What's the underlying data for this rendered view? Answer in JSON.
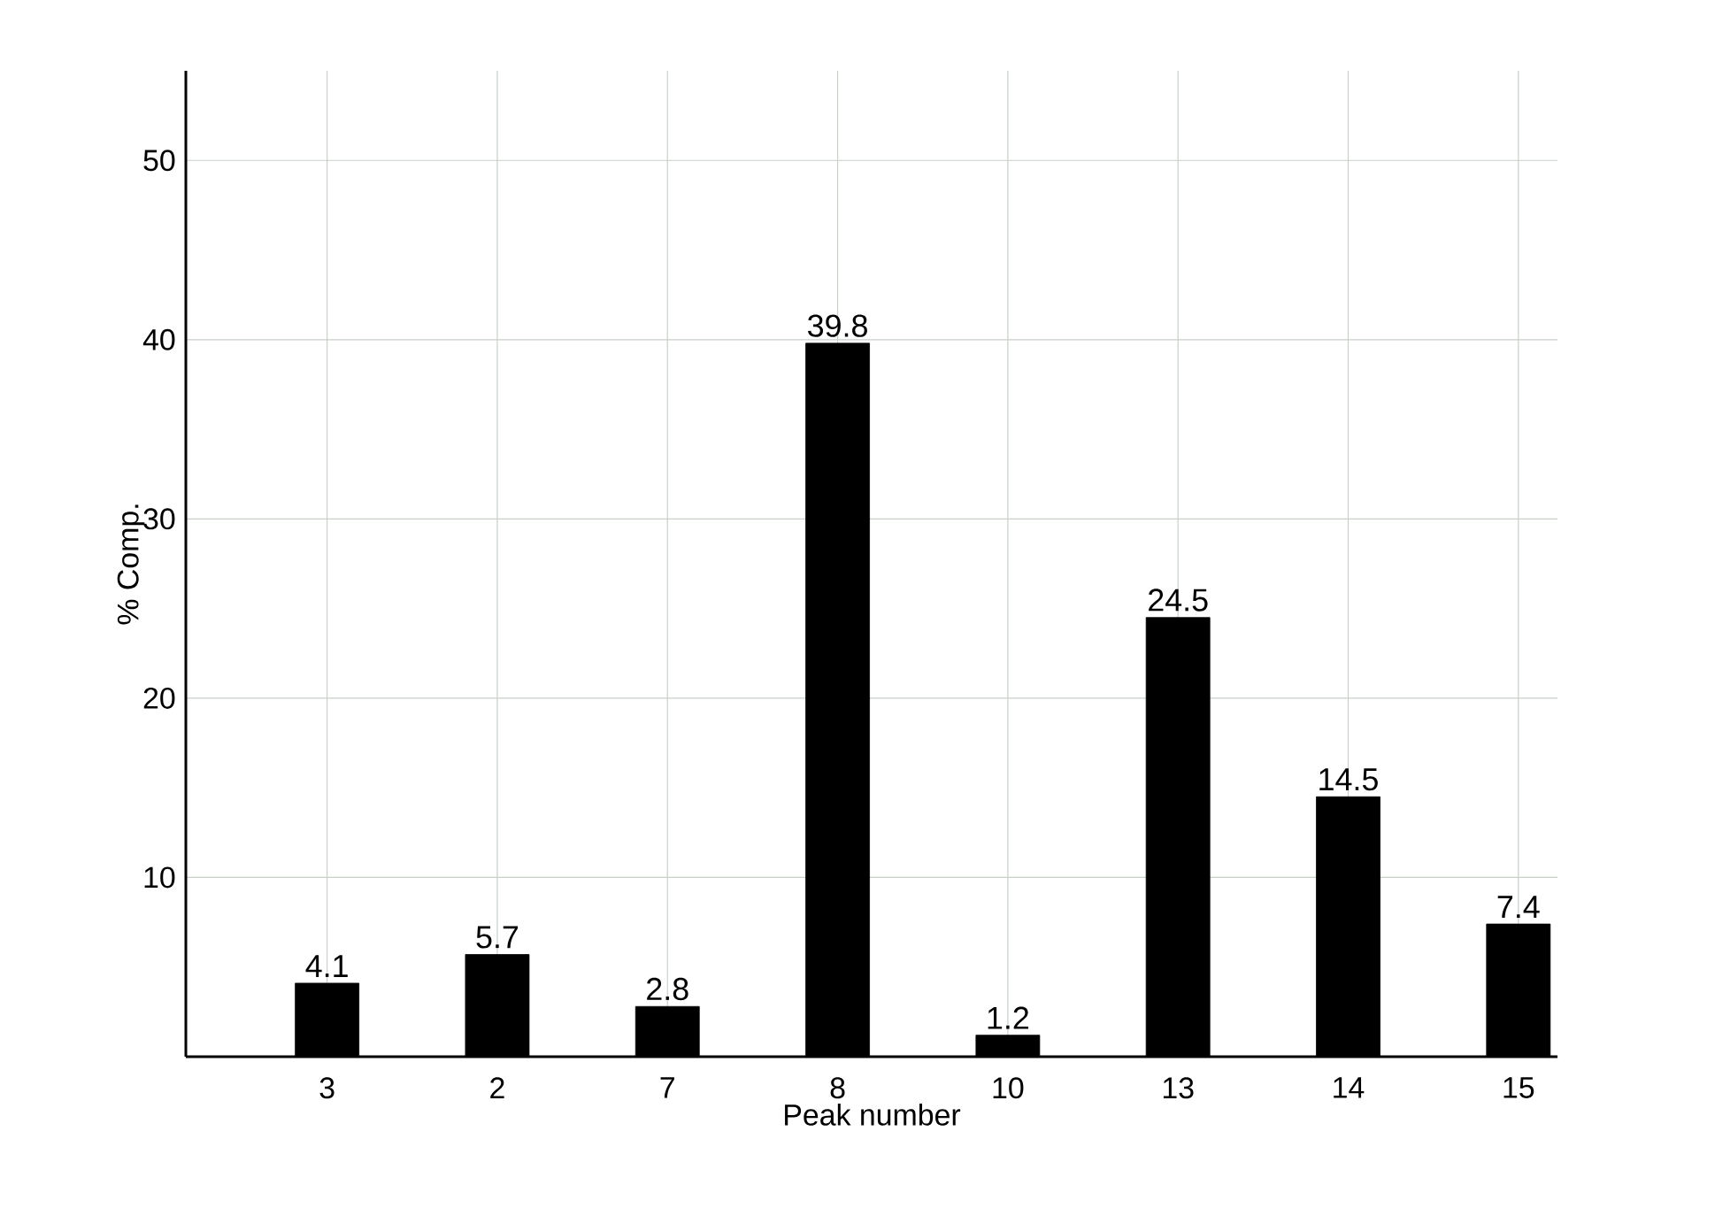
{
  "chart_data": {
    "type": "bar",
    "xlabel": "Peak number",
    "ylabel": "% Comp.",
    "categories": [
      "3",
      "2",
      "7",
      "8",
      "10",
      "13",
      "14",
      "15"
    ],
    "values": [
      4.1,
      5.7,
      2.8,
      39.8,
      1.2,
      24.5,
      14.5,
      7.4
    ],
    "color": "#000000",
    "ylim": [
      0,
      55
    ],
    "yticks": [
      10,
      20,
      30,
      40,
      50
    ],
    "grid": true,
    "data_labels": true
  }
}
